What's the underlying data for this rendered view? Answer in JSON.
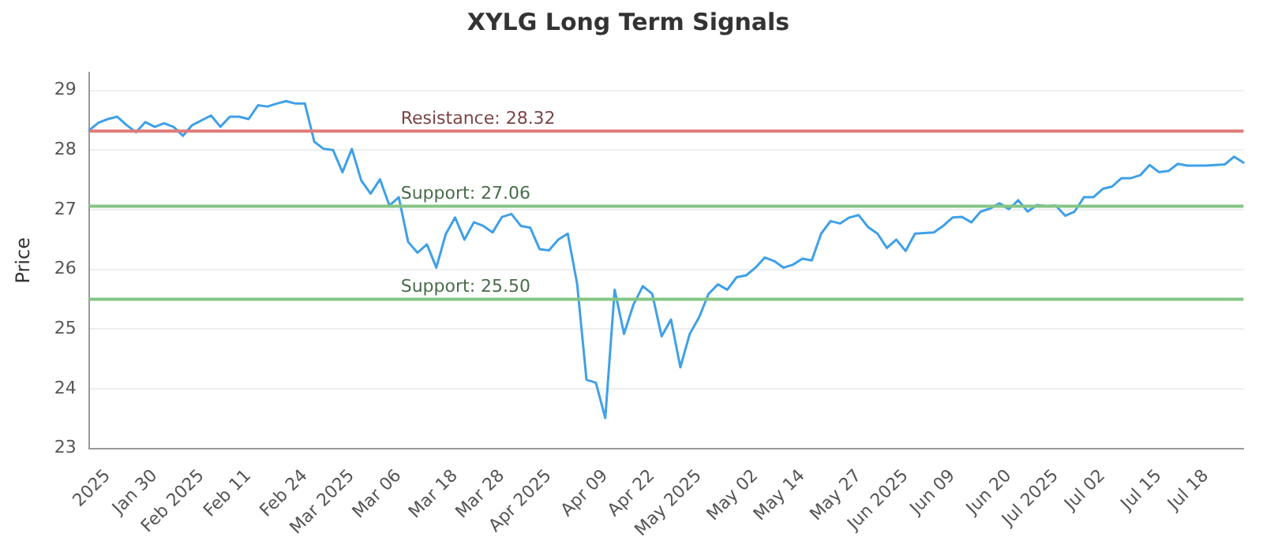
{
  "chart_data": {
    "type": "line",
    "title": "XYLG Long Term Signals",
    "ylabel": "Price",
    "categories": [
      null,
      null,
      "2025",
      null,
      null,
      null,
      null,
      "Jan 30",
      null,
      null,
      null,
      null,
      "Feb 2025",
      null,
      null,
      null,
      null,
      "Feb 11",
      null,
      null,
      null,
      null,
      null,
      "Feb 24",
      null,
      null,
      null,
      null,
      "Mar 2025",
      null,
      null,
      null,
      null,
      "Mar 06",
      null,
      null,
      null,
      null,
      null,
      "Mar 18",
      null,
      null,
      null,
      null,
      "Mar 28",
      null,
      null,
      null,
      null,
      "Apr 2025",
      null,
      null,
      null,
      null,
      null,
      "Apr 09",
      null,
      null,
      null,
      null,
      "Apr 22",
      null,
      null,
      null,
      null,
      "May 2025",
      null,
      null,
      null,
      null,
      null,
      "May 02",
      null,
      null,
      null,
      null,
      "May 14",
      null,
      null,
      null,
      null,
      null,
      "May 27",
      null,
      null,
      null,
      null,
      "Jun 2025",
      null,
      null,
      null,
      null,
      "Jun 09",
      null,
      null,
      null,
      null,
      null,
      "Jun 20",
      null,
      null,
      null,
      null,
      "Jul 2025",
      null,
      null,
      null,
      null,
      "Jul 02",
      null,
      null,
      null,
      null,
      null,
      "Jul 15",
      null,
      null,
      null,
      null,
      "Jul 18",
      null,
      null,
      null,
      null
    ],
    "series": [
      {
        "color": "#3fa0e8",
        "values": [
          28.33,
          28.46,
          28.52,
          28.56,
          28.42,
          28.3,
          28.47,
          28.39,
          28.45,
          28.39,
          28.24,
          28.42,
          28.5,
          28.58,
          28.39,
          28.56,
          28.56,
          28.52,
          28.75,
          28.73,
          28.78,
          28.82,
          28.78,
          28.78,
          28.14,
          28.02,
          28.0,
          27.63,
          28.02,
          27.49,
          27.27,
          27.51,
          27.07,
          27.21,
          26.46,
          26.28,
          26.42,
          26.03,
          26.59,
          26.87,
          26.5,
          26.79,
          26.73,
          26.62,
          26.88,
          26.93,
          26.73,
          26.7,
          26.34,
          26.32,
          26.5,
          26.6,
          25.76,
          24.15,
          24.1,
          23.51,
          25.66,
          24.92,
          25.41,
          25.72,
          25.59,
          24.88,
          25.16,
          24.36,
          24.92,
          25.2,
          25.59,
          25.75,
          25.66,
          25.87,
          25.9,
          26.03,
          26.2,
          26.14,
          26.03,
          26.08,
          26.18,
          26.15,
          26.6,
          26.81,
          26.77,
          26.87,
          26.91,
          26.71,
          26.6,
          26.36,
          26.5,
          26.31,
          26.6,
          26.61,
          26.62,
          26.73,
          26.87,
          26.88,
          26.79,
          26.97,
          27.02,
          27.11,
          27.01,
          27.16,
          26.97,
          27.08,
          27.06,
          27.07,
          26.9,
          26.97,
          27.21,
          27.21,
          27.35,
          27.39,
          27.53,
          27.53,
          27.58,
          27.75,
          27.63,
          27.65,
          27.77,
          27.74,
          27.74,
          27.74,
          27.75,
          27.76,
          27.89,
          27.79
        ]
      }
    ],
    "ylim": [
      23,
      29.3
    ],
    "yticks": [
      23,
      24,
      25,
      26,
      27,
      28,
      29
    ],
    "grid": "y",
    "legend": false,
    "marker": "none",
    "line_style": "solid",
    "ref_lines": [
      {
        "axis": "y",
        "value": 28.32,
        "label": "Resistance: 28.32",
        "color": "#e07b7b"
      },
      {
        "axis": "y",
        "value": 27.06,
        "label": "Support: 27.06",
        "color": "#85c585"
      },
      {
        "axis": "y",
        "value": 25.5,
        "label": "Support: 25.50",
        "color": "#85c585"
      }
    ]
  }
}
